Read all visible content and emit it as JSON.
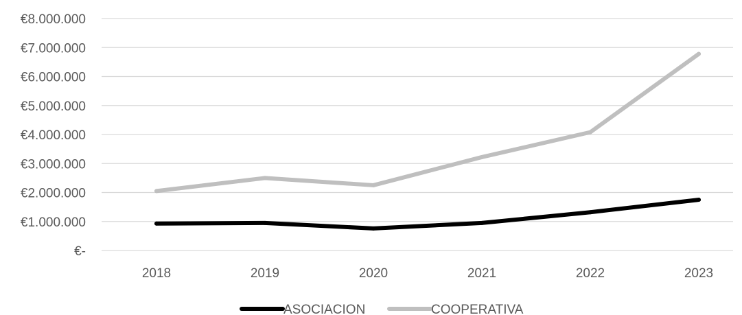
{
  "chart_data": {
    "type": "line",
    "categories": [
      "2018",
      "2019",
      "2020",
      "2021",
      "2022",
      "2023"
    ],
    "series": [
      {
        "name": "ASOCIACION",
        "color": "#000000",
        "values": [
          930000,
          950000,
          760000,
          950000,
          1320000,
          1750000
        ]
      },
      {
        "name": "COOPERATIVA",
        "color": "#bfbfbf",
        "values": [
          2050000,
          2500000,
          2250000,
          3220000,
          4080000,
          6780000
        ]
      }
    ],
    "ylim": [
      0,
      8000000
    ],
    "y_ticks": [
      0,
      1000000,
      2000000,
      3000000,
      4000000,
      5000000,
      6000000,
      7000000,
      8000000
    ],
    "y_tick_labels": [
      "€-",
      "€1.000.000",
      "€2.000.000",
      "€3.000.000",
      "€4.000.000",
      "€5.000.000",
      "€6.000.000",
      "€7.000.000",
      "€8.000.000"
    ],
    "grid": true,
    "legend": "bottom-center",
    "gridline_color": "#d9d9d9"
  }
}
